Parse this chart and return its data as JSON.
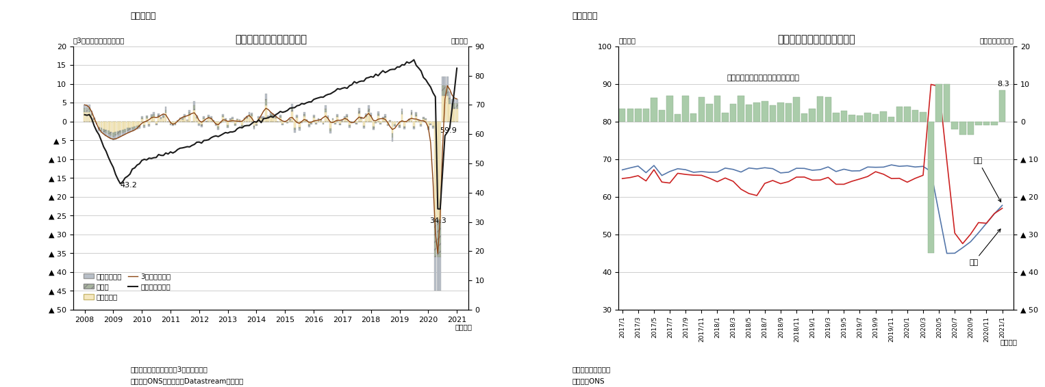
{
  "chart3": {
    "title": "求人数の変化（要因分解）",
    "ylabel_left": "（3か月前との差、万人）",
    "ylabel_right": "（万件）",
    "xlabel": "（月次）",
    "note": "（注）季節調整値、後方3か月移動平均",
    "source": "（資料）ONSのデータをDatastreamより取得",
    "header": "（図表３）",
    "left_ylim": [
      -50,
      20
    ],
    "right_ylim": [
      0,
      90
    ],
    "xticks": [
      2008,
      2009,
      2010,
      2011,
      2012,
      2013,
      2014,
      2015,
      2016,
      2017,
      2018,
      2019,
      2020,
      2021
    ],
    "colors": {
      "sonota": "#b8bfc8",
      "seizogyo": "#a8b4a0",
      "service": "#f5e8c0",
      "line_3ka": "#8B4513",
      "kyujin": "#1a1a1a"
    },
    "legend_sonota": "その他の産業",
    "legend_seizogyo": "製造業",
    "legend_service": "サービス業",
    "legend_3ka": "3か月前との差",
    "legend_kyujin": "求人数（右軸）",
    "ann_43": [
      2009.25,
      -17.5,
      "43.2"
    ],
    "ann_599": [
      2020.4,
      -3.0,
      "59.9"
    ],
    "ann_343": [
      2020.05,
      -27.0,
      "34.3"
    ]
  },
  "chart4": {
    "title": "英国給与所得者の流出入推移",
    "ylabel_left": "（万人）",
    "ylabel_right": "（ネット、万人）",
    "xlabel": "（月次）",
    "note": "（注）季節調整値。",
    "source": "（資料）ONS",
    "header": "（図表４）",
    "left_ylim": [
      30,
      100
    ],
    "right_ylim": [
      -50,
      20
    ],
    "colors": {
      "inflow_line": "#5577aa",
      "outflow_line": "#cc2222",
      "net_bar": "#aaccaa"
    },
    "legend_net": "ネット流入（＝流入－流出、右軸）",
    "ann_83": "8.3",
    "label_ryunyu": "流入",
    "label_ryushutsu": "流出"
  }
}
